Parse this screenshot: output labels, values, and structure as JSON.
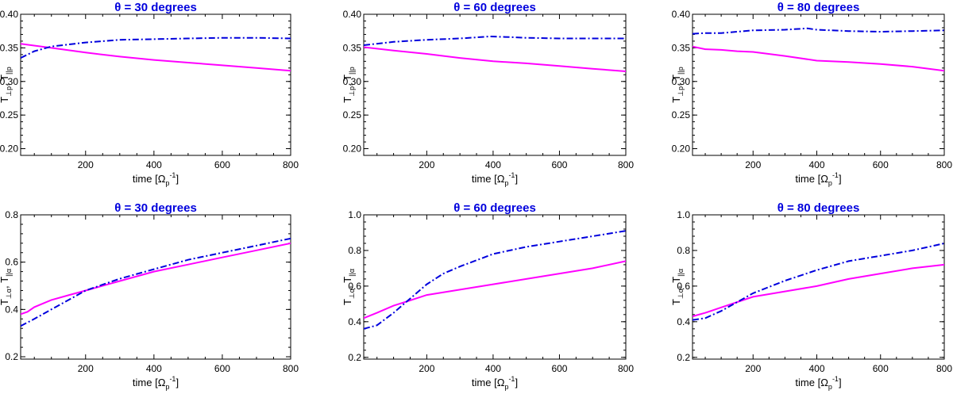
{
  "chart_data": [
    {
      "type": "line",
      "title": "θ = 30 degrees",
      "xlabel": {
        "base": "time [Ω",
        "sub": "p",
        "sup": "-1",
        "close": "]"
      },
      "ylabel": {
        "t1": "T",
        "s1": "⊥p",
        "mid": ", T",
        "s2": "||p"
      },
      "xlim": [
        10,
        800
      ],
      "ylim": [
        0.19,
        0.4
      ],
      "xticks": [
        200,
        400,
        600,
        800
      ],
      "yticks": [
        0.2,
        0.25,
        0.3,
        0.35,
        0.4
      ],
      "ytick_labels": [
        "0.20",
        "0.25",
        "0.30",
        "0.35",
        "0.40"
      ],
      "series": [
        {
          "name": "T⊥ (solid)",
          "color": "#ff00ff",
          "style": "solid",
          "x": [
            10,
            100,
            200,
            300,
            400,
            500,
            600,
            700,
            800
          ],
          "y": [
            0.356,
            0.35,
            0.343,
            0.337,
            0.332,
            0.328,
            0.324,
            0.32,
            0.316
          ]
        },
        {
          "name": "T|| (dash-dot)",
          "color": "#0000dd",
          "style": "dashdot",
          "x": [
            10,
            50,
            100,
            150,
            200,
            300,
            400,
            500,
            600,
            700,
            800
          ],
          "y": [
            0.335,
            0.345,
            0.352,
            0.355,
            0.358,
            0.362,
            0.363,
            0.364,
            0.365,
            0.365,
            0.364
          ]
        }
      ]
    },
    {
      "type": "line",
      "title": "θ = 60 degrees",
      "xlabel": {
        "base": "time [Ω",
        "sub": "p",
        "sup": "-1",
        "close": "]"
      },
      "ylabel": {
        "t1": "T",
        "s1": "⊥p",
        "mid": ", T",
        "s2": "||p"
      },
      "xlim": [
        10,
        800
      ],
      "ylim": [
        0.19,
        0.4
      ],
      "xticks": [
        200,
        400,
        600,
        800
      ],
      "yticks": [
        0.2,
        0.25,
        0.3,
        0.35,
        0.4
      ],
      "ytick_labels": [
        "0.20",
        "0.25",
        "0.30",
        "0.35",
        "0.40"
      ],
      "series": [
        {
          "name": "T⊥ (solid)",
          "color": "#ff00ff",
          "style": "solid",
          "x": [
            10,
            100,
            200,
            300,
            400,
            500,
            600,
            700,
            800
          ],
          "y": [
            0.351,
            0.346,
            0.341,
            0.335,
            0.33,
            0.327,
            0.323,
            0.319,
            0.315
          ]
        },
        {
          "name": "T|| (dash-dot)",
          "color": "#0000dd",
          "style": "dashdot",
          "x": [
            10,
            100,
            200,
            300,
            390,
            450,
            500,
            600,
            700,
            800
          ],
          "y": [
            0.354,
            0.359,
            0.362,
            0.364,
            0.367,
            0.366,
            0.365,
            0.364,
            0.364,
            0.364
          ]
        }
      ]
    },
    {
      "type": "line",
      "title": "θ = 80 degrees",
      "xlabel": {
        "base": "time [Ω",
        "sub": "p",
        "sup": "-1",
        "close": "]"
      },
      "ylabel": {
        "t1": "T",
        "s1": "⊥p",
        "mid": ", T",
        "s2": "||p"
      },
      "xlim": [
        10,
        800
      ],
      "ylim": [
        0.19,
        0.4
      ],
      "xticks": [
        200,
        400,
        600,
        800
      ],
      "yticks": [
        0.2,
        0.25,
        0.3,
        0.35,
        0.4
      ],
      "ytick_labels": [
        "0.20",
        "0.25",
        "0.30",
        "0.35",
        "0.40"
      ],
      "series": [
        {
          "name": "T⊥ (solid)",
          "color": "#ff00ff",
          "style": "solid",
          "x": [
            10,
            50,
            100,
            150,
            200,
            300,
            400,
            500,
            600,
            700,
            800
          ],
          "y": [
            0.352,
            0.348,
            0.347,
            0.345,
            0.344,
            0.338,
            0.331,
            0.329,
            0.326,
            0.322,
            0.316
          ]
        },
        {
          "name": "T|| (dash-dot)",
          "color": "#0000dd",
          "style": "dashdot",
          "x": [
            10,
            50,
            100,
            200,
            300,
            370,
            400,
            500,
            600,
            700,
            800
          ],
          "y": [
            0.371,
            0.372,
            0.372,
            0.376,
            0.377,
            0.379,
            0.377,
            0.375,
            0.374,
            0.375,
            0.376
          ]
        }
      ]
    },
    {
      "type": "line",
      "title": "θ = 30 degrees",
      "xlabel": {
        "base": "time [Ω",
        "sub": "p",
        "sup": "-1",
        "close": "]"
      },
      "ylabel": {
        "t1": "T",
        "s1": "⊥α",
        "mid": ", T",
        "s2": "||α"
      },
      "xlim": [
        10,
        800
      ],
      "ylim": [
        0.19,
        0.8
      ],
      "xticks": [
        200,
        400,
        600,
        800
      ],
      "yticks": [
        0.2,
        0.4,
        0.6,
        0.8
      ],
      "ytick_labels": [
        "0.2",
        "0.4",
        "0.6",
        "0.8"
      ],
      "series": [
        {
          "name": "T⊥ (solid)",
          "color": "#ff00ff",
          "style": "solid",
          "x": [
            10,
            30,
            50,
            100,
            150,
            200,
            300,
            400,
            500,
            600,
            700,
            800
          ],
          "y": [
            0.38,
            0.39,
            0.41,
            0.44,
            0.46,
            0.48,
            0.52,
            0.56,
            0.59,
            0.62,
            0.65,
            0.68
          ]
        },
        {
          "name": "T|| (dash-dot)",
          "color": "#0000dd",
          "style": "dashdot",
          "x": [
            10,
            50,
            100,
            150,
            200,
            300,
            400,
            500,
            600,
            700,
            800
          ],
          "y": [
            0.33,
            0.36,
            0.4,
            0.44,
            0.48,
            0.53,
            0.57,
            0.61,
            0.64,
            0.67,
            0.7
          ]
        }
      ]
    },
    {
      "type": "line",
      "title": "θ = 60 degrees",
      "xlabel": {
        "base": "time [Ω",
        "sub": "p",
        "sup": "-1",
        "close": "]"
      },
      "ylabel": {
        "t1": "T",
        "s1": "⊥α",
        "mid": ", T",
        "s2": "||α"
      },
      "xlim": [
        10,
        800
      ],
      "ylim": [
        0.19,
        1.0
      ],
      "xticks": [
        200,
        400,
        600,
        800
      ],
      "yticks": [
        0.2,
        0.4,
        0.6,
        0.8,
        1.0
      ],
      "ytick_labels": [
        "0.2",
        "0.4",
        "0.6",
        "0.8",
        "1.0"
      ],
      "series": [
        {
          "name": "T⊥ (solid)",
          "color": "#ff00ff",
          "style": "solid",
          "x": [
            10,
            50,
            100,
            150,
            200,
            300,
            400,
            500,
            600,
            700,
            800
          ],
          "y": [
            0.42,
            0.45,
            0.49,
            0.52,
            0.55,
            0.58,
            0.61,
            0.64,
            0.67,
            0.7,
            0.74
          ]
        },
        {
          "name": "T|| (dash-dot)",
          "color": "#0000dd",
          "style": "dashdot",
          "x": [
            10,
            50,
            100,
            150,
            200,
            250,
            300,
            400,
            500,
            600,
            700,
            800
          ],
          "y": [
            0.36,
            0.38,
            0.45,
            0.53,
            0.61,
            0.67,
            0.71,
            0.78,
            0.82,
            0.85,
            0.88,
            0.91
          ]
        }
      ]
    },
    {
      "type": "line",
      "title": "θ = 80 degrees",
      "xlabel": {
        "base": "time [Ω",
        "sub": "p",
        "sup": "-1",
        "close": "]"
      },
      "ylabel": {
        "t1": "T",
        "s1": "⊥α",
        "mid": ", T",
        "s2": "||α"
      },
      "xlim": [
        10,
        800
      ],
      "ylim": [
        0.19,
        1.0
      ],
      "xticks": [
        200,
        400,
        600,
        800
      ],
      "yticks": [
        0.2,
        0.4,
        0.6,
        0.8,
        1.0
      ],
      "ytick_labels": [
        "0.2",
        "0.4",
        "0.6",
        "0.8",
        "1.0"
      ],
      "series": [
        {
          "name": "T⊥ (solid)",
          "color": "#ff00ff",
          "style": "solid",
          "x": [
            10,
            50,
            100,
            150,
            200,
            300,
            400,
            500,
            600,
            700,
            800
          ],
          "y": [
            0.43,
            0.45,
            0.48,
            0.51,
            0.54,
            0.57,
            0.6,
            0.64,
            0.67,
            0.7,
            0.72
          ]
        },
        {
          "name": "T|| (dash-dot)",
          "color": "#0000dd",
          "style": "dashdot",
          "x": [
            10,
            50,
            100,
            150,
            200,
            300,
            400,
            500,
            600,
            700,
            800
          ],
          "y": [
            0.41,
            0.42,
            0.46,
            0.51,
            0.56,
            0.63,
            0.69,
            0.74,
            0.77,
            0.8,
            0.84
          ]
        }
      ]
    }
  ]
}
